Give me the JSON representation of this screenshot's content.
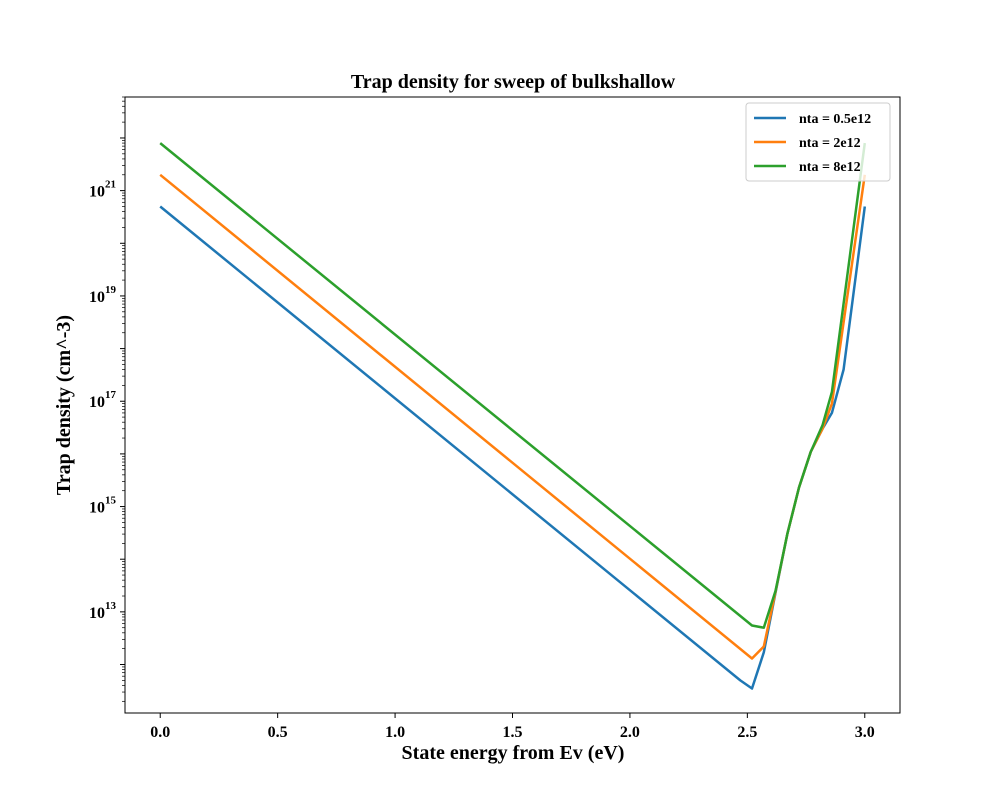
{
  "chart_data": {
    "type": "line",
    "title": "Trap density for sweep of bulkshallow",
    "xlabel": "State energy from Ev (eV)",
    "ylabel": "Trap density (cm^-3)",
    "xlim": [
      -0.15,
      3.15
    ],
    "ylim": [
      120000000000.0,
      6e+22
    ],
    "yscale": "log",
    "xticks": [
      {
        "value": 0.0,
        "label": "0.0"
      },
      {
        "value": 0.5,
        "label": "0.5"
      },
      {
        "value": 1.0,
        "label": "1.0"
      },
      {
        "value": 1.5,
        "label": "1.5"
      },
      {
        "value": 2.0,
        "label": "2.0"
      },
      {
        "value": 2.5,
        "label": "2.5"
      },
      {
        "value": 3.0,
        "label": "3.0"
      }
    ],
    "yticks": [
      {
        "value": 10000000000000.0,
        "base": "10",
        "exp": "13"
      },
      {
        "value": 1000000000000000.0,
        "base": "10",
        "exp": "15"
      },
      {
        "value": 1e+17,
        "base": "10",
        "exp": "17"
      },
      {
        "value": 1e+19,
        "base": "10",
        "exp": "19"
      },
      {
        "value": 1e+21,
        "base": "10",
        "exp": "21"
      }
    ],
    "grid": false,
    "legend_position": "top-right",
    "series": [
      {
        "name": "nta = 0.5e12",
        "color": "#1f77b4",
        "points": [
          [
            0.0,
            5e+20
          ],
          [
            2.47,
            500000000000.0
          ],
          [
            2.52,
            350000000000.0
          ],
          [
            2.57,
            1700000000000.0
          ],
          [
            2.62,
            23000000000000.0
          ],
          [
            2.67,
            300000000000000.0
          ],
          [
            2.72,
            2300000000000000.0
          ],
          [
            2.77,
            1.1e+16
          ],
          [
            2.82,
            3e+16
          ],
          [
            2.86,
            6e+16
          ],
          [
            2.91,
            4e+17
          ],
          [
            3.0,
            5e+20
          ]
        ]
      },
      {
        "name": "nta = 2e12",
        "color": "#ff7f0e",
        "points": [
          [
            0.0,
            2e+21
          ],
          [
            2.52,
            1300000000000.0
          ],
          [
            2.57,
            2200000000000.0
          ],
          [
            2.62,
            24000000000000.0
          ],
          [
            2.67,
            300000000000000.0
          ],
          [
            2.72,
            2300000000000000.0
          ],
          [
            2.77,
            1.1e+16
          ],
          [
            2.82,
            3e+16
          ],
          [
            2.86,
            9e+16
          ],
          [
            3.0,
            2e+21
          ]
        ]
      },
      {
        "name": "nta = 8e12",
        "color": "#2ca02c",
        "points": [
          [
            0.0,
            8e+21
          ],
          [
            2.52,
            5500000000000.0
          ],
          [
            2.57,
            5000000000000.0
          ],
          [
            2.62,
            25000000000000.0
          ],
          [
            2.67,
            300000000000000.0
          ],
          [
            2.72,
            2300000000000000.0
          ],
          [
            2.77,
            1.1e+16
          ],
          [
            2.82,
            3.5e+16
          ],
          [
            2.86,
            1.5e+17
          ],
          [
            3.0,
            8e+21
          ]
        ]
      }
    ]
  }
}
